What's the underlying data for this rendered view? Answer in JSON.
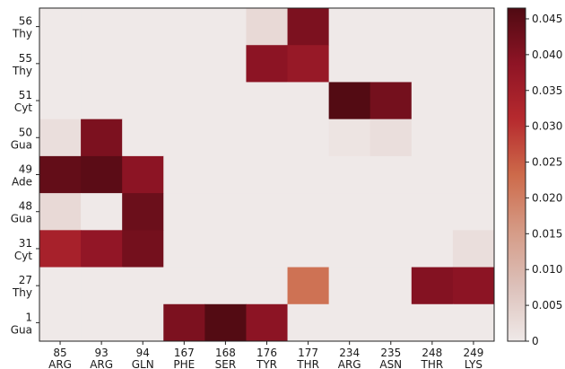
{
  "chart_data": {
    "type": "heatmap",
    "title": "",
    "xlabel": "",
    "ylabel": "",
    "x_categories": [
      {
        "num": "85",
        "res": "ARG"
      },
      {
        "num": "93",
        "res": "ARG"
      },
      {
        "num": "94",
        "res": "GLN"
      },
      {
        "num": "167",
        "res": "PHE"
      },
      {
        "num": "168",
        "res": "SER"
      },
      {
        "num": "176",
        "res": "TYR"
      },
      {
        "num": "177",
        "res": "THR"
      },
      {
        "num": "234",
        "res": "ARG"
      },
      {
        "num": "235",
        "res": "ASN"
      },
      {
        "num": "248",
        "res": "THR"
      },
      {
        "num": "249",
        "res": "LYS"
      }
    ],
    "y_categories": [
      {
        "num": "56",
        "res": "Thy"
      },
      {
        "num": "55",
        "res": "Thy"
      },
      {
        "num": "51",
        "res": "Cyt"
      },
      {
        "num": "50",
        "res": "Gua"
      },
      {
        "num": "49",
        "res": "Ade"
      },
      {
        "num": "48",
        "res": "Gua"
      },
      {
        "num": "31",
        "res": "Cyt"
      },
      {
        "num": "27",
        "res": "Thy"
      },
      {
        "num": "1",
        "res": "Gua"
      }
    ],
    "values": [
      [
        0.0,
        0.0,
        0.0,
        0.0,
        0.0,
        0.003,
        0.041,
        0.0,
        0.0,
        0.0,
        0.0
      ],
      [
        0.0,
        0.0,
        0.0,
        0.0,
        0.0,
        0.039,
        0.037,
        0.0,
        0.0,
        0.0,
        0.0
      ],
      [
        0.0,
        0.0,
        0.0,
        0.0,
        0.0,
        0.0,
        0.0,
        0.046,
        0.042,
        0.0,
        0.0
      ],
      [
        0.002,
        0.041,
        0.0,
        0.0,
        0.0,
        0.0,
        0.0,
        0.001,
        0.002,
        0.0,
        0.0
      ],
      [
        0.044,
        0.045,
        0.039,
        0.0,
        0.0,
        0.0,
        0.0,
        0.0,
        0.0,
        0.0,
        0.0
      ],
      [
        0.003,
        0.0,
        0.043,
        0.0,
        0.0,
        0.0,
        0.0,
        0.0,
        0.0,
        0.0,
        0.0
      ],
      [
        0.034,
        0.038,
        0.042,
        0.0,
        0.0,
        0.0,
        0.0,
        0.0,
        0.0,
        0.0,
        0.002
      ],
      [
        0.0,
        0.0,
        0.0,
        0.0,
        0.0,
        0.0,
        0.022,
        0.0,
        0.0,
        0.04,
        0.039
      ],
      [
        0.0,
        0.0,
        0.0,
        0.041,
        0.046,
        0.039,
        0.0,
        0.0,
        0.0,
        0.0,
        0.0
      ]
    ],
    "colorbar": {
      "min": 0,
      "max": 0.0465,
      "ticks": [
        "0",
        "0.005",
        "0.010",
        "0.015",
        "0.020",
        "0.025",
        "0.030",
        "0.035",
        "0.040",
        "0.045"
      ]
    },
    "colormap": [
      "#efe9e8",
      "#dcc0b9",
      "#d59a85",
      "#cd6a4a",
      "#b62a2e",
      "#8e1425",
      "#4f0a12"
    ]
  }
}
